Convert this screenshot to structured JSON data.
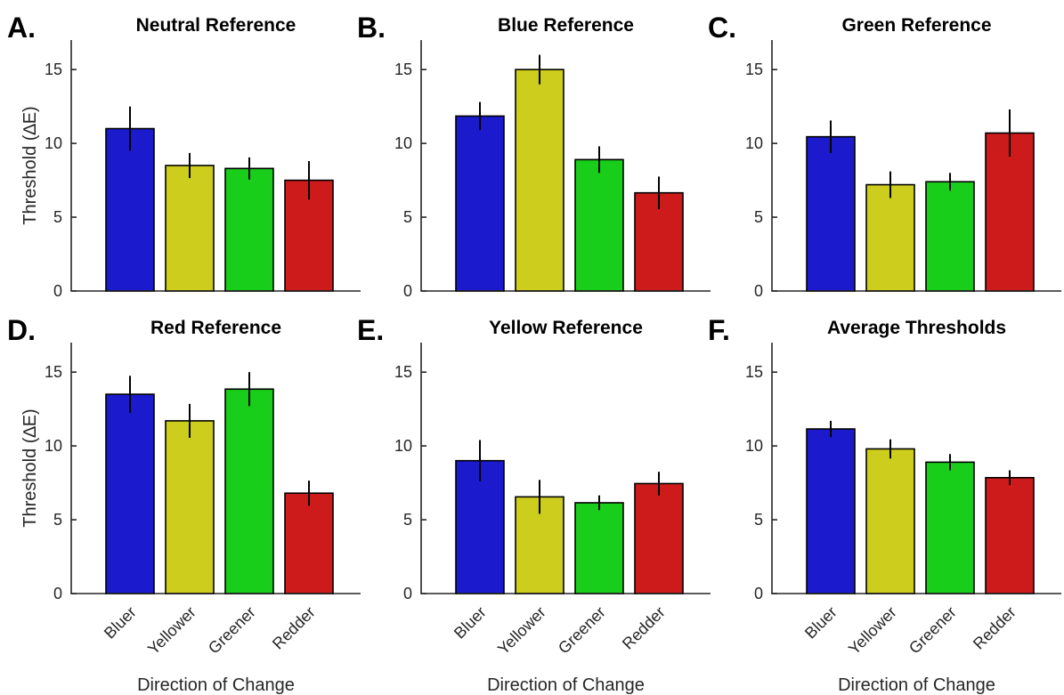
{
  "figure": {
    "xlabel": "Direction of Change",
    "ylabel": "Threshold (∆E)",
    "categories": [
      "Bluer",
      "Yellower",
      "Greener",
      "Redder"
    ],
    "bar_colors": [
      "#1b1bcd",
      "#cdcd1e",
      "#19cd1b",
      "#cd1b1b"
    ],
    "yticks": [
      0,
      5,
      10,
      15
    ]
  },
  "chart_data": [
    {
      "type": "bar",
      "letter": "A.",
      "title": "Neutral Reference",
      "categories": [
        "Bluer",
        "Yellower",
        "Greener",
        "Redder"
      ],
      "values": [
        11.0,
        8.5,
        8.3,
        7.5
      ],
      "errors": [
        1.5,
        0.85,
        0.75,
        1.3
      ],
      "ylabel": "Threshold (∆E)",
      "xlabel": "",
      "ylim": [
        0,
        17
      ],
      "grid": false
    },
    {
      "type": "bar",
      "letter": "B.",
      "title": "Blue Reference",
      "categories": [
        "Bluer",
        "Yellower",
        "Greener",
        "Redder"
      ],
      "values": [
        11.85,
        15.0,
        8.9,
        6.65
      ],
      "errors": [
        0.95,
        1.0,
        0.9,
        1.1
      ],
      "ylabel": "",
      "xlabel": "",
      "ylim": [
        0,
        17
      ],
      "grid": false
    },
    {
      "type": "bar",
      "letter": "C.",
      "title": "Green Reference",
      "categories": [
        "Bluer",
        "Yellower",
        "Greener",
        "Redder"
      ],
      "values": [
        10.45,
        7.2,
        7.4,
        10.7
      ],
      "errors": [
        1.1,
        0.9,
        0.6,
        1.6
      ],
      "ylabel": "",
      "xlabel": "",
      "ylim": [
        0,
        17
      ],
      "grid": false
    },
    {
      "type": "bar",
      "letter": "D.",
      "title": "Red Reference",
      "categories": [
        "Bluer",
        "Yellower",
        "Greener",
        "Redder"
      ],
      "values": [
        13.5,
        11.7,
        13.85,
        6.8
      ],
      "errors": [
        1.25,
        1.15,
        1.15,
        0.85
      ],
      "ylabel": "Threshold (∆E)",
      "xlabel": "Direction of Change",
      "ylim": [
        0,
        17
      ],
      "grid": false
    },
    {
      "type": "bar",
      "letter": "E.",
      "title": "Yellow Reference",
      "categories": [
        "Bluer",
        "Yellower",
        "Greener",
        "Redder"
      ],
      "values": [
        9.0,
        6.55,
        6.15,
        7.45
      ],
      "errors": [
        1.4,
        1.15,
        0.5,
        0.8
      ],
      "ylabel": "",
      "xlabel": "Direction of Change",
      "ylim": [
        0,
        17
      ],
      "grid": false
    },
    {
      "type": "bar",
      "letter": "F.",
      "title": "Average Thresholds",
      "categories": [
        "Bluer",
        "Yellower",
        "Greener",
        "Redder"
      ],
      "values": [
        11.15,
        9.8,
        8.9,
        7.85
      ],
      "errors": [
        0.55,
        0.65,
        0.55,
        0.5
      ],
      "ylabel": "",
      "xlabel": "Direction of Change",
      "ylim": [
        0,
        17
      ],
      "grid": false
    }
  ]
}
